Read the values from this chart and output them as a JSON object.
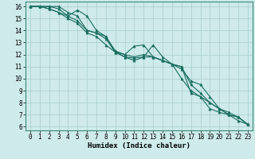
{
  "xlabel": "Humidex (Indice chaleur)",
  "ylabel": "",
  "background_color": "#ceeaea",
  "grid_color": "#aacccc",
  "line_color": "#1a6e60",
  "xlim": [
    -0.5,
    23.5
  ],
  "ylim": [
    5.7,
    16.4
  ],
  "yticks": [
    6,
    7,
    8,
    9,
    10,
    11,
    12,
    13,
    14,
    15,
    16
  ],
  "xticks": [
    0,
    1,
    2,
    3,
    4,
    5,
    6,
    7,
    8,
    9,
    10,
    11,
    12,
    13,
    14,
    15,
    16,
    17,
    18,
    19,
    20,
    21,
    22,
    23
  ],
  "series": [
    {
      "x": [
        0,
        1,
        2,
        3,
        4,
        5,
        6,
        7,
        8,
        9,
        10,
        11,
        12,
        13,
        14,
        15,
        16,
        17,
        18,
        19,
        20,
        21,
        22,
        23
      ],
      "y": [
        16,
        16,
        16,
        16,
        15.5,
        15.2,
        14.0,
        13.8,
        13.5,
        12.2,
        12.0,
        11.8,
        12.0,
        11.8,
        11.5,
        11.2,
        11.0,
        8.8,
        8.5,
        7.5,
        7.2,
        7.0,
        6.5,
        6.2
      ]
    },
    {
      "x": [
        0,
        1,
        2,
        3,
        4,
        5,
        6,
        7,
        8,
        9,
        10,
        11,
        12,
        13,
        14,
        15,
        16,
        17,
        18,
        19,
        20,
        21,
        22,
        23
      ],
      "y": [
        16,
        16,
        15.8,
        15.5,
        15.2,
        15.7,
        15.2,
        14.0,
        13.5,
        12.3,
        12.0,
        12.7,
        12.8,
        11.8,
        11.5,
        11.2,
        10.8,
        9.8,
        9.5,
        8.5,
        7.5,
        7.2,
        6.8,
        6.2
      ]
    },
    {
      "x": [
        0,
        1,
        2,
        3,
        4,
        5,
        6,
        7,
        8,
        9,
        10,
        11,
        12,
        13,
        14,
        15,
        16,
        17,
        18,
        19,
        20,
        21,
        22,
        23
      ],
      "y": [
        16,
        16,
        16,
        15.8,
        15.2,
        14.8,
        14.0,
        13.8,
        13.3,
        12.2,
        11.8,
        11.7,
        11.8,
        12.8,
        11.8,
        11.2,
        10.0,
        9.0,
        8.5,
        8.0,
        7.5,
        7.0,
        6.8,
        6.2
      ]
    },
    {
      "x": [
        0,
        1,
        2,
        3,
        4,
        5,
        6,
        7,
        8,
        9,
        10,
        11,
        12,
        13,
        14,
        15,
        16,
        17,
        18,
        19,
        20,
        21,
        22,
        23
      ],
      "y": [
        16,
        16,
        15.8,
        15.5,
        15.0,
        14.6,
        13.8,
        13.5,
        12.8,
        12.2,
        11.8,
        11.5,
        11.8,
        11.8,
        11.5,
        11.2,
        11.0,
        9.5,
        8.8,
        8.0,
        7.5,
        7.0,
        6.8,
        6.2
      ]
    }
  ]
}
